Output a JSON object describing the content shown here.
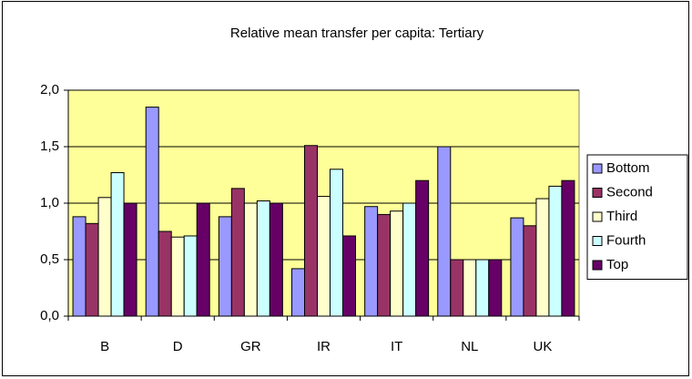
{
  "chart_data": {
    "type": "bar",
    "title": "Relative mean transfer per capita: Tertiary",
    "categories": [
      "B",
      "D",
      "GR",
      "IR",
      "IT",
      "NL",
      "UK"
    ],
    "series": [
      {
        "name": "Bottom",
        "color": "#9999ff",
        "values": [
          0.88,
          1.85,
          0.88,
          0.42,
          0.97,
          1.5,
          0.87
        ]
      },
      {
        "name": "Second",
        "color": "#993366",
        "values": [
          0.82,
          0.75,
          1.13,
          1.51,
          0.9,
          0.5,
          0.8
        ]
      },
      {
        "name": "Third",
        "color": "#ffffcc",
        "values": [
          1.05,
          0.7,
          1.0,
          1.06,
          0.93,
          0.5,
          1.04
        ]
      },
      {
        "name": "Fourth",
        "color": "#ccffff",
        "values": [
          1.27,
          0.71,
          1.02,
          1.3,
          1.0,
          0.5,
          1.15
        ]
      },
      {
        "name": "Top",
        "color": "#660066",
        "values": [
          1.0,
          1.0,
          1.0,
          0.71,
          1.2,
          0.5,
          1.2
        ]
      }
    ],
    "ylim": [
      0,
      2
    ],
    "yticks": [
      {
        "value": 0,
        "label": "0,0"
      },
      {
        "value": 0.5,
        "label": "0,5"
      },
      {
        "value": 1,
        "label": "1,0"
      },
      {
        "value": 1.5,
        "label": "1,5"
      },
      {
        "value": 2,
        "label": "2,0"
      }
    ],
    "grid": true,
    "legend": "right",
    "plot_background": "#ffff99"
  }
}
